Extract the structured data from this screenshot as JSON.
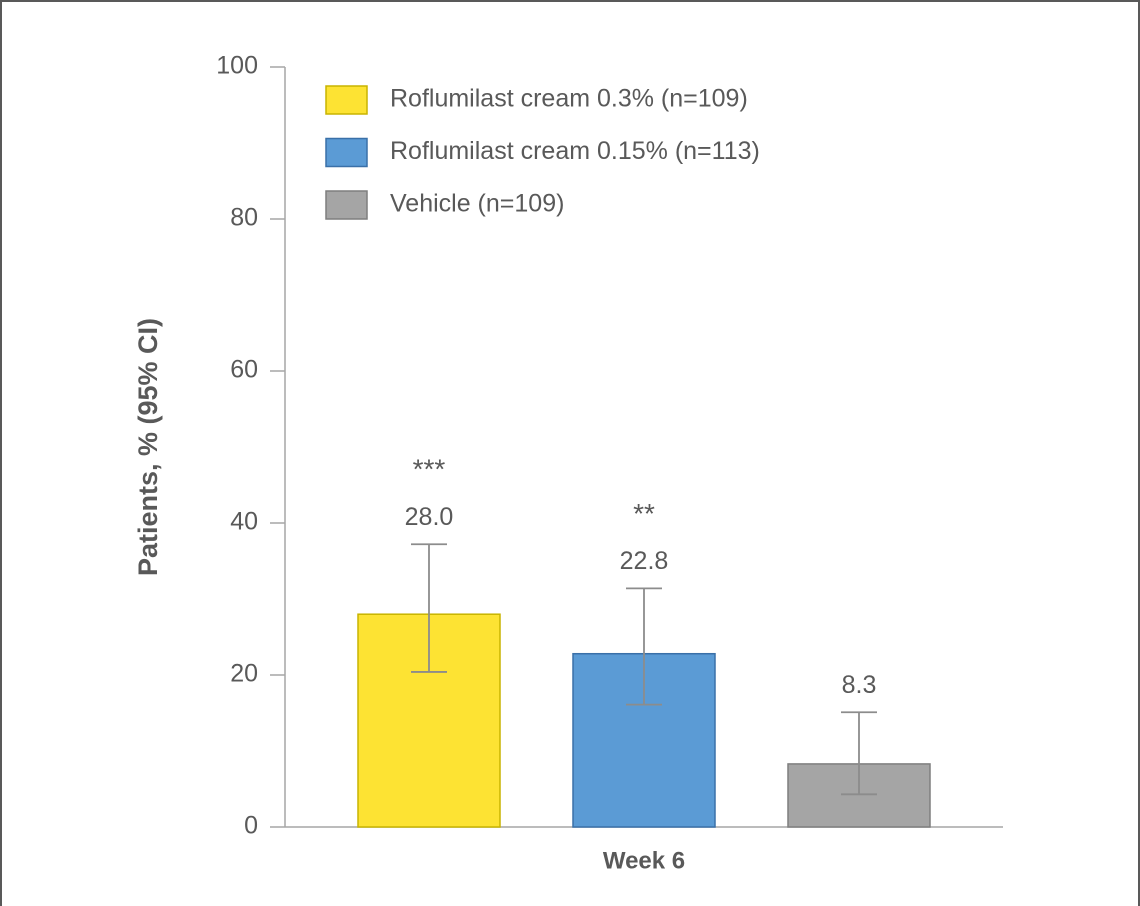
{
  "chart_data": {
    "type": "bar",
    "y_label": "Patients, % (95% CI)",
    "categories": [
      "Week 6"
    ],
    "series": [
      {
        "name": "Roflumilast cream 0.3% (n=109)",
        "color": "#FDE333",
        "stroke": "#C8B400",
        "values": [
          28.0
        ],
        "value_labels": [
          "28.0"
        ],
        "ci_low": [
          20.4
        ],
        "ci_high": [
          37.2
        ],
        "significance": "***"
      },
      {
        "name": "Roflumilast cream 0.15% (n=113)",
        "color": "#5B9BD5",
        "stroke": "#3A70A8",
        "values": [
          22.8
        ],
        "value_labels": [
          "22.8"
        ],
        "ci_low": [
          16.1
        ],
        "ci_high": [
          31.4
        ],
        "significance": "**"
      },
      {
        "name": "Vehicle (n=109)",
        "color": "#A5A5A5",
        "stroke": "#7F7F7F",
        "values": [
          8.3
        ],
        "value_labels": [
          "8.3"
        ],
        "ci_low": [
          4.3
        ],
        "ci_high": [
          15.1
        ]
      }
    ],
    "ylim": [
      0,
      100
    ],
    "yticks": [
      0,
      20,
      40,
      60,
      80,
      100
    ],
    "grid": false,
    "legend": "top-left"
  }
}
